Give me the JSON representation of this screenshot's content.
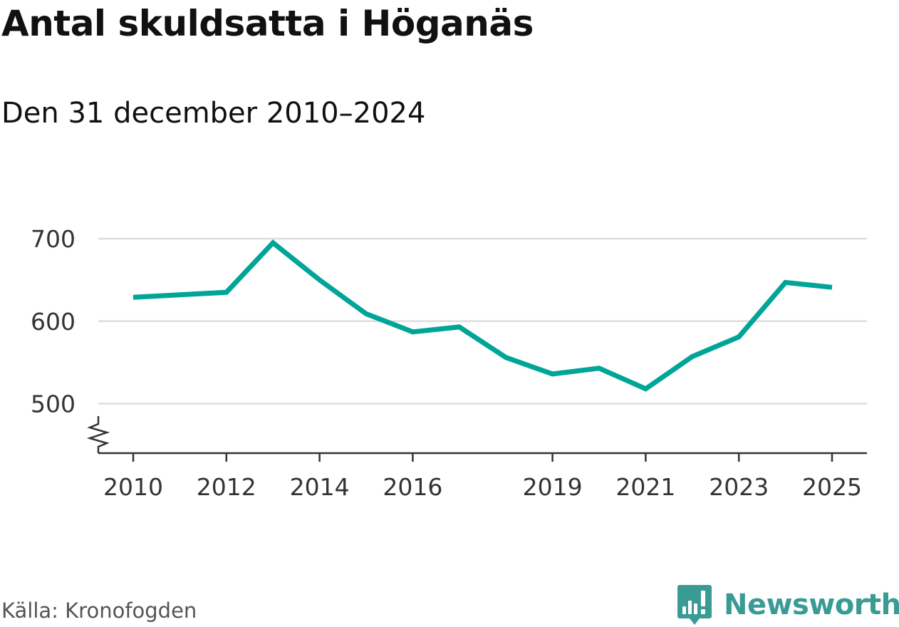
{
  "header": {
    "title": "Antal skuldsatta i Höganäs",
    "subtitle": "Den 31 december 2010–2024"
  },
  "footer": {
    "source": "Källa: Kronofogden",
    "brand": "Newsworthy"
  },
  "icons": {
    "brand_logo": "newsworthy-logo-icon",
    "axis_break": "axis-break-icon"
  },
  "colors": {
    "line": "#00a598",
    "brand": "#3a9b95",
    "grid": "#dddddd",
    "axis": "#333333",
    "text": "#111111",
    "source": "#555555"
  },
  "chart_data": {
    "type": "line",
    "x": [
      2010,
      2012,
      2013,
      2014,
      2015,
      2016,
      2017,
      2018,
      2019,
      2020,
      2021,
      2022,
      2023,
      2024,
      2025
    ],
    "series": [
      {
        "values": [
          629,
          635,
          695,
          650,
          609,
          587,
          593,
          556,
          536,
          543,
          518,
          557,
          581,
          647,
          641
        ]
      }
    ],
    "xticks": [
      2010,
      2012,
      2014,
      2016,
      2019,
      2021,
      2023,
      2025
    ],
    "yticks": [
      500,
      600,
      700
    ],
    "xlim": [
      2010,
      2025
    ],
    "ylim": [
      440,
      700
    ],
    "grid": true,
    "axis_break": true
  }
}
